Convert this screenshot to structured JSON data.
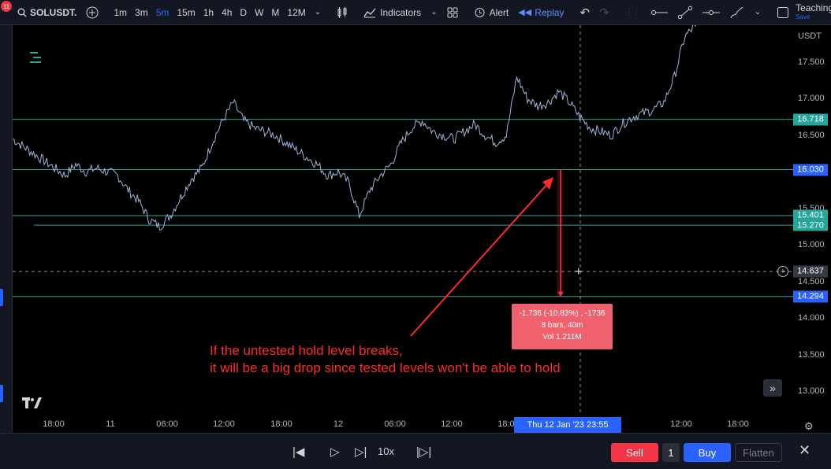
{
  "toolbar": {
    "notification_count": "11",
    "symbol": "SOLUSDT.",
    "timeframes": [
      "1m",
      "3m",
      "5m",
      "15m",
      "1h",
      "4h",
      "D",
      "W",
      "M",
      "12M"
    ],
    "active_timeframe": "5m",
    "indicators_label": "Indicators",
    "alert_label": "Alert",
    "replay_label": "Replay",
    "layout_name": "Teaching",
    "save_label": "Save"
  },
  "price_axis": {
    "currency": "USDT",
    "ticks": [
      "17.500",
      "17.000",
      "16.500",
      "15.500",
      "15.000",
      "14.500",
      "14.000",
      "13.500",
      "13.000"
    ],
    "tags": [
      {
        "value": "16.718",
        "color": "#26a69a",
        "price": 16.718
      },
      {
        "value": "16.030",
        "color": "#2962ff",
        "price": 16.03
      },
      {
        "value": "15.401",
        "color": "#26a69a",
        "price": 15.401
      },
      {
        "value": "15.270",
        "color": "#26a69a",
        "price": 15.27
      },
      {
        "value": "14.637",
        "color": "#363a45",
        "price": 14.637
      },
      {
        "value": "14.294",
        "color": "#2962ff",
        "price": 14.294
      }
    ]
  },
  "time_axis": {
    "ticks": [
      "18:00",
      "11",
      "06:00",
      "12:00",
      "18:00",
      "12",
      "06:00",
      "12:00",
      "18:00",
      "12:00",
      "18:00"
    ],
    "crosshair_label": "Thu 12 Jan '23   23:55"
  },
  "measure": {
    "line1": "-1.736 (-10.83%) , -1736",
    "line2": "8 bars, 40m",
    "line3": "Vol 1.211M"
  },
  "annotation": {
    "line1": "If the untested hold level breaks,",
    "line2": "it will be a big drop since tested levels won't be able to hold"
  },
  "bottom": {
    "speed": "10x",
    "sell_label": "Sell",
    "quantity": "1",
    "buy_label": "Buy",
    "flatten_label": "Flatten"
  },
  "colors": {
    "accent": "#2962ff",
    "level_line": "#26a69a",
    "annotation": "#ff2a2a",
    "price_line": "#9db4d8"
  },
  "chart_data": {
    "type": "line",
    "title": "",
    "xlabel": "",
    "ylabel": "",
    "ylim": [
      12.7,
      18.0
    ],
    "horizontal_levels": [
      16.718,
      16.03,
      15.401,
      15.27,
      14.294
    ],
    "crosshair_price": 14.637,
    "series": [
      {
        "values": [
          16.45,
          16.35,
          16.25,
          16.15,
          16.05,
          15.95,
          16.1,
          16.0,
          16.05,
          16.0,
          15.95,
          15.75,
          15.6,
          15.35,
          15.25,
          15.4,
          15.65,
          15.9,
          16.05,
          16.4,
          16.7,
          16.95,
          16.7,
          16.6,
          16.55,
          16.5,
          16.4,
          16.3,
          16.2,
          16.1,
          15.95,
          16.0,
          15.85,
          15.4,
          15.75,
          15.95,
          16.1,
          16.4,
          16.6,
          16.7,
          16.55,
          16.5,
          16.45,
          16.55,
          16.65,
          16.5,
          16.4,
          16.5,
          17.3,
          17.0,
          16.9,
          16.95,
          17.1,
          16.95,
          16.75,
          16.6,
          16.55,
          16.5,
          16.65,
          16.75,
          16.8,
          16.85,
          16.95,
          17.3,
          17.85,
          18.0
        ]
      }
    ]
  }
}
